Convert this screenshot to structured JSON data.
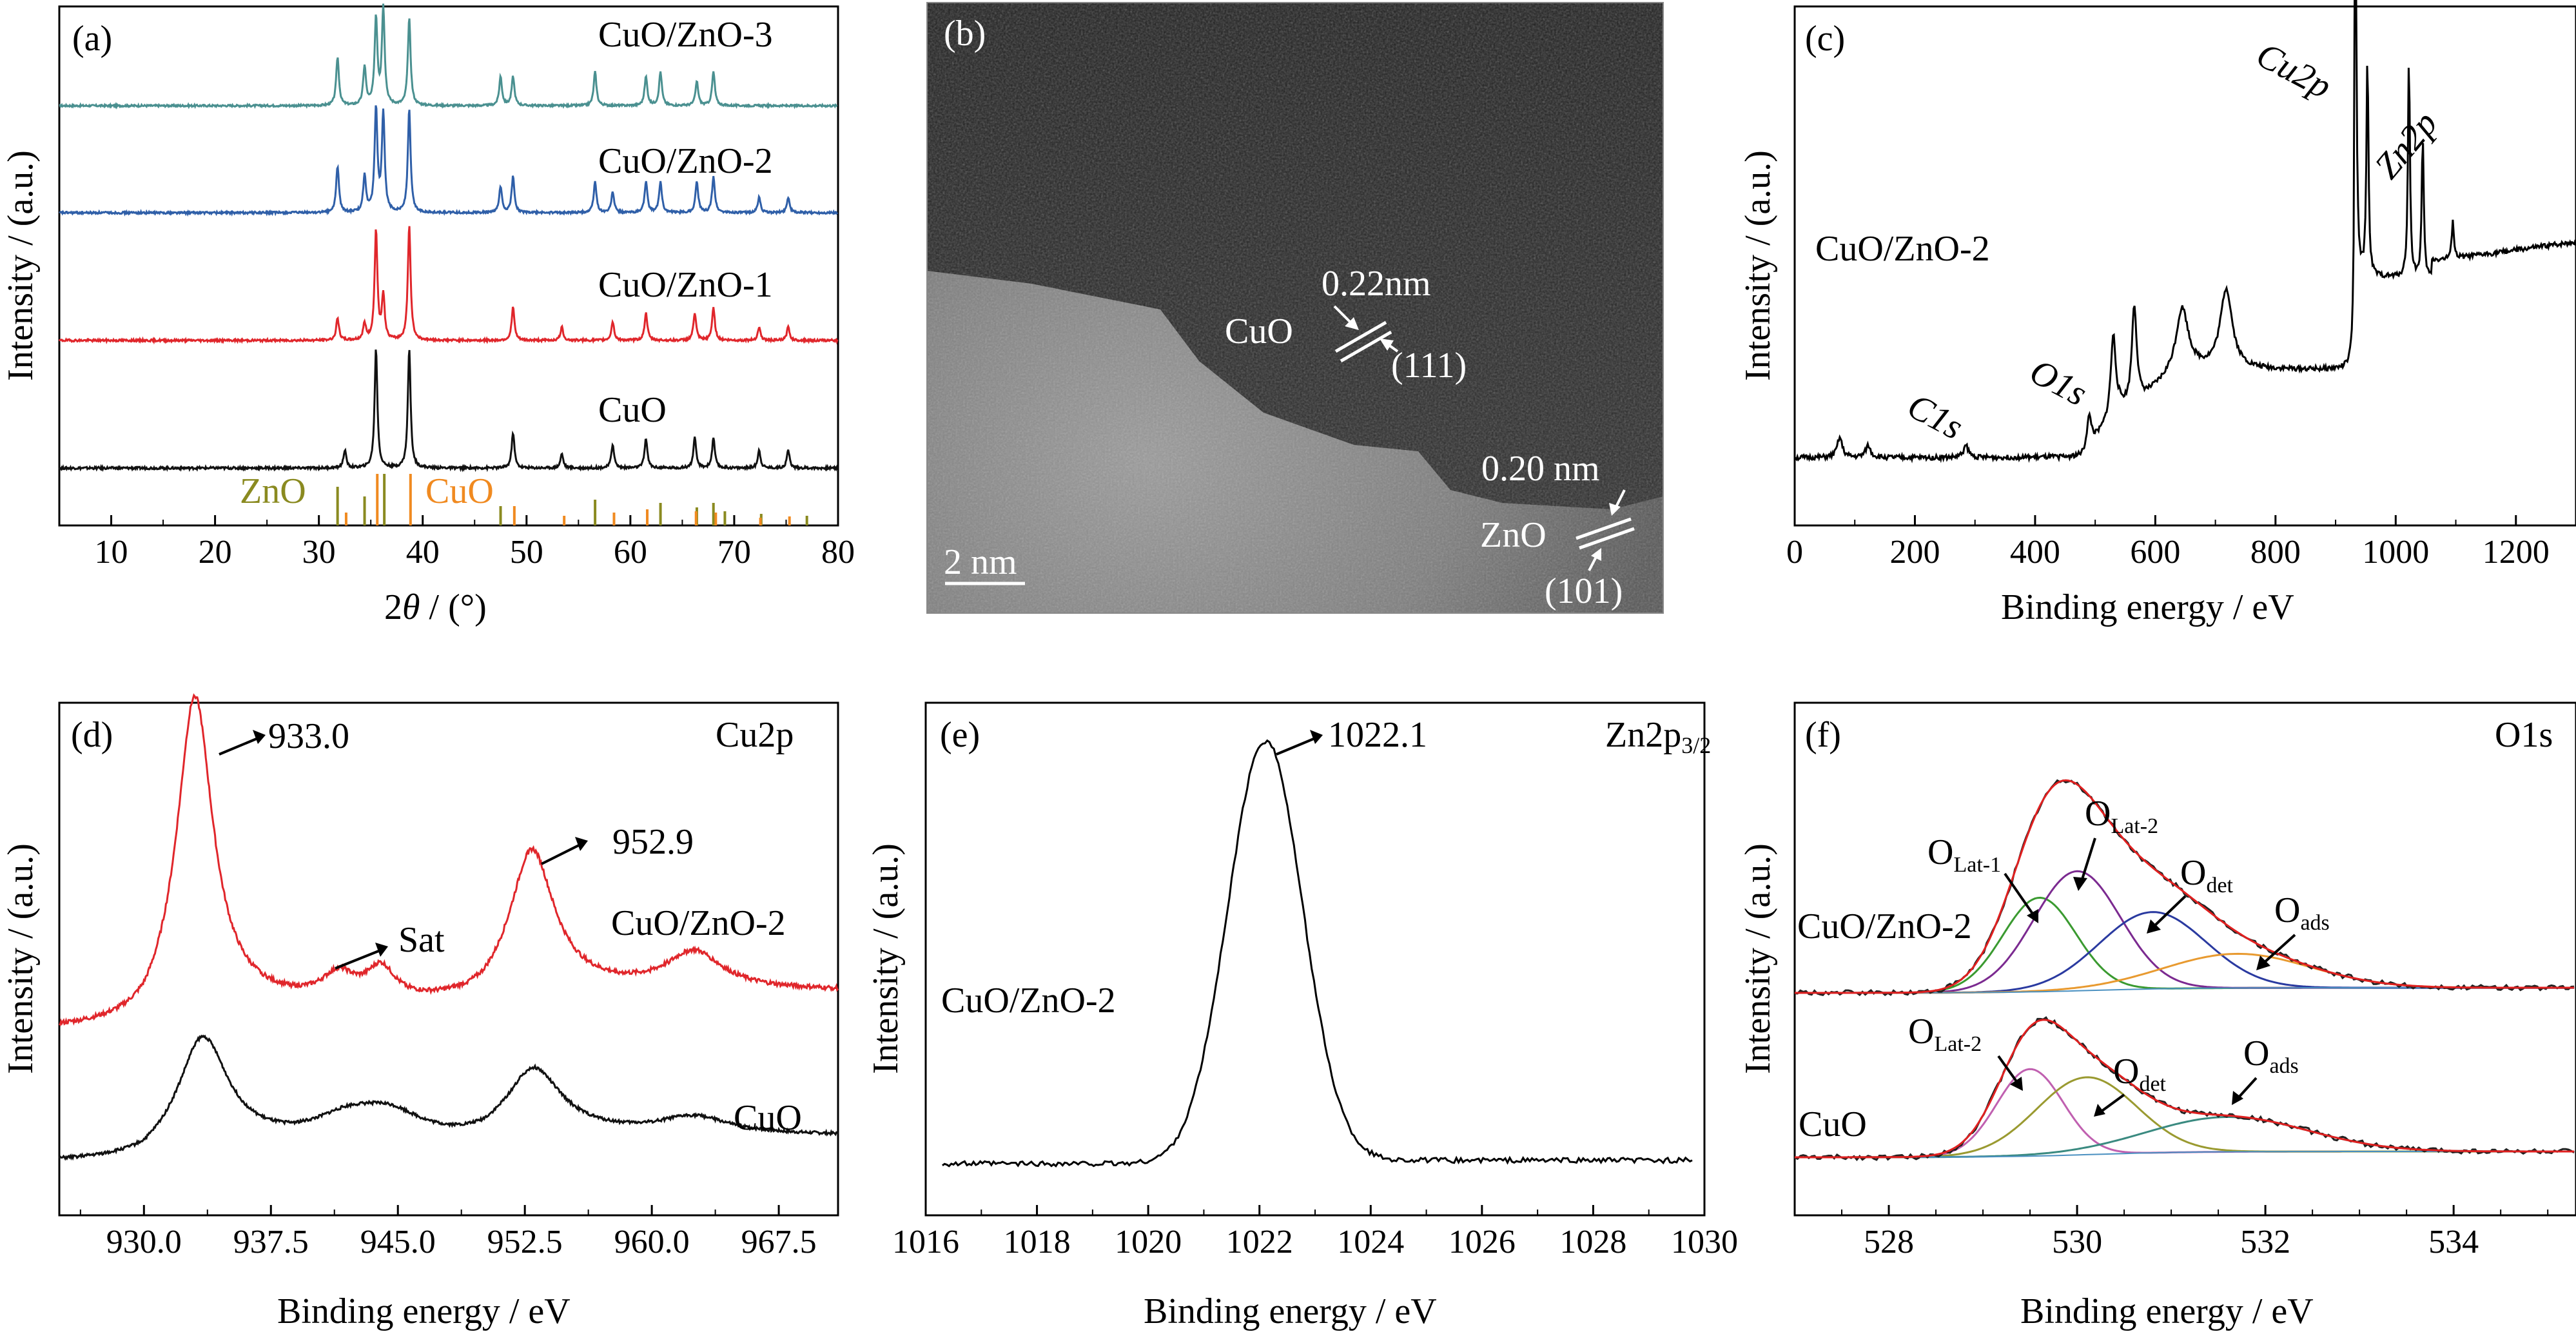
{
  "panels": {
    "a": {
      "label": "(a)",
      "xlabel_pre": "2",
      "xlabel_theta": "θ",
      "xlabel_post": " / (°)",
      "ylabel": "Intensity / (a.u.)",
      "xticks": [
        "10",
        "20",
        "30",
        "40",
        "50",
        "60",
        "70",
        "80"
      ],
      "series_names": [
        "CuO/ZnO-3",
        "CuO/ZnO-2",
        "CuO/ZnO-1",
        "CuO"
      ],
      "ref_names": [
        "ZnO",
        "CuO"
      ]
    },
    "b": {
      "label": "(b)",
      "scale": "2  nm",
      "cuo_label": "CuO",
      "cuo_d": "0.22nm",
      "cuo_plane": "(111)",
      "zno_label": "ZnO",
      "zno_d": "0.20 nm",
      "zno_plane": "(101)"
    },
    "c": {
      "label": "(c)",
      "xlabel": "Binding energy / eV",
      "ylabel": "Intensity / (a.u.)",
      "xticks": [
        "0",
        "200",
        "400",
        "600",
        "800",
        "1000",
        "1200"
      ],
      "sample": "CuO/ZnO-2",
      "peaks": [
        "C1s",
        "O1s",
        "Cu2p",
        "Zn2p"
      ]
    },
    "d": {
      "label": "(d)",
      "region": "Cu2p",
      "xlabel": "Binding energy / eV",
      "ylabel": "Intensity / (a.u.)",
      "xticks": [
        "930.0",
        "937.5",
        "945.0",
        "952.5",
        "960.0",
        "967.5"
      ],
      "annotations": [
        "933.0",
        "952.9",
        "Sat"
      ],
      "series_names": [
        "CuO/ZnO-2",
        "CuO"
      ]
    },
    "e": {
      "label": "(e)",
      "region_main": "Zn2p",
      "region_sub": "3/2",
      "xlabel": "Binding energy / eV",
      "ylabel": "Intensity / (a.u.)",
      "xticks": [
        "1016",
        "1018",
        "1020",
        "1022",
        "1024",
        "1026",
        "1028",
        "1030"
      ],
      "annotation": "1022.1",
      "sample": "CuO/ZnO-2"
    },
    "f": {
      "label": "(f)",
      "region": "O1s",
      "xlabel": "Binding energy / eV",
      "ylabel": "Intensity / (a.u.)",
      "xticks": [
        "528",
        "530",
        "532",
        "534"
      ],
      "samples": [
        "CuO/ZnO-2",
        "CuO"
      ],
      "comp_O": "O",
      "comp_lat1": "Lat-1",
      "comp_lat2": "Lat-2",
      "comp_det": "det",
      "comp_ads": "ads"
    }
  },
  "colors": {
    "cuo_zno_3": "#4a9090",
    "cuo_zno_2": "#2f5fa8",
    "cuo_zno_1": "#e0262b",
    "cuo": "#111111",
    "ref_zno": "#8a8a20",
    "ref_cuo": "#f08a20",
    "lat1": "#3a9a30",
    "lat2": "#7b2a90",
    "det": "#2a3aa0",
    "ads": "#e89a30",
    "envelope": "#e02020",
    "cuo_lat2": "#c060b0",
    "cuo_det": "#9a9a30",
    "cuo_ads": "#3a8a80"
  },
  "chart_data": [
    {
      "panel": "a",
      "type": "line",
      "xlabel": "2θ / (°)",
      "ylabel": "Intensity / (a.u.)",
      "xlim": [
        5,
        80
      ],
      "series": [
        {
          "name": "CuO/ZnO-3",
          "peaks": [
            [
              31.8,
              0.5
            ],
            [
              34.4,
              0.4
            ],
            [
              35.5,
              0.9
            ],
            [
              36.2,
              1.0
            ],
            [
              38.7,
              0.9
            ],
            [
              47.5,
              0.3
            ],
            [
              48.7,
              0.3
            ],
            [
              56.6,
              0.35
            ],
            [
              61.5,
              0.3
            ],
            [
              62.9,
              0.35
            ],
            [
              66.4,
              0.25
            ],
            [
              68.0,
              0.35
            ]
          ]
        },
        {
          "name": "CuO/ZnO-2",
          "peaks": [
            [
              31.8,
              0.45
            ],
            [
              34.4,
              0.35
            ],
            [
              35.5,
              1.0
            ],
            [
              36.2,
              0.95
            ],
            [
              38.7,
              1.0
            ],
            [
              47.5,
              0.25
            ],
            [
              48.7,
              0.35
            ],
            [
              56.6,
              0.3
            ],
            [
              58.3,
              0.2
            ],
            [
              61.5,
              0.3
            ],
            [
              62.9,
              0.3
            ],
            [
              66.4,
              0.3
            ],
            [
              68.0,
              0.35
            ],
            [
              72.4,
              0.15
            ],
            [
              75.2,
              0.15
            ]
          ]
        },
        {
          "name": "CuO/ZnO-1",
          "peaks": [
            [
              31.8,
              0.2
            ],
            [
              34.4,
              0.15
            ],
            [
              35.5,
              1.0
            ],
            [
              36.2,
              0.4
            ],
            [
              38.7,
              1.05
            ],
            [
              48.7,
              0.3
            ],
            [
              53.4,
              0.12
            ],
            [
              58.3,
              0.17
            ],
            [
              61.5,
              0.25
            ],
            [
              66.2,
              0.25
            ],
            [
              68.0,
              0.3
            ],
            [
              72.4,
              0.12
            ],
            [
              75.2,
              0.12
            ]
          ]
        },
        {
          "name": "CuO",
          "peaks": [
            [
              32.5,
              0.15
            ],
            [
              35.5,
              1.0
            ],
            [
              38.7,
              1.0
            ],
            [
              48.7,
              0.3
            ],
            [
              53.4,
              0.12
            ],
            [
              58.3,
              0.2
            ],
            [
              61.5,
              0.25
            ],
            [
              66.2,
              0.25
            ],
            [
              68.0,
              0.25
            ],
            [
              72.4,
              0.15
            ],
            [
              75.2,
              0.15
            ]
          ]
        }
      ],
      "reference_ZnO": [
        31.8,
        34.4,
        36.3,
        47.5,
        56.6,
        62.9,
        66.4,
        68.0,
        69.1,
        72.6,
        77.0
      ],
      "reference_CuO": [
        32.5,
        35.5,
        38.7,
        48.7,
        53.5,
        58.3,
        61.5,
        66.2,
        68.1,
        72.4,
        75.2
      ]
    },
    {
      "panel": "c",
      "type": "line",
      "xlabel": "Binding energy / eV",
      "ylabel": "Intensity / (a.u.)",
      "xlim": [
        0,
        1300
      ],
      "series": [
        {
          "name": "CuO/ZnO-2",
          "peaks": [
            [
              75,
              0.05
            ],
            [
              122,
              0.03
            ],
            [
              285,
              0.03
            ],
            [
              490,
              0.08
            ],
            [
              530,
              0.2
            ],
            [
              565,
              0.25
            ],
            [
              645,
              0.15
            ],
            [
              718,
              0.2
            ],
            [
              933,
              1.0
            ],
            [
              953,
              0.55
            ],
            [
              1022,
              0.55
            ],
            [
              1045,
              0.35
            ],
            [
              1095,
              0.1
            ]
          ]
        }
      ]
    },
    {
      "panel": "d",
      "type": "line",
      "xlabel": "Binding energy / eV",
      "ylabel": "Intensity / (a.u.)",
      "xlim": [
        925,
        971
      ],
      "series": [
        {
          "name": "CuO/ZnO-2",
          "peaks": [
            [
              933.0,
              1.0
            ],
            [
              941.5,
              0.08
            ],
            [
              944.0,
              0.1
            ],
            [
              952.9,
              0.45
            ],
            [
              962.5,
              0.12
            ]
          ]
        },
        {
          "name": "CuO",
          "peaks": [
            [
              933.5,
              0.5
            ],
            [
              942,
              0.1
            ],
            [
              944.5,
              0.12
            ],
            [
              953.0,
              0.3
            ],
            [
              962.5,
              0.08
            ]
          ]
        }
      ]
    },
    {
      "panel": "e",
      "type": "line",
      "xlabel": "Binding energy / eV",
      "ylabel": "Intensity / (a.u.)",
      "xlim": [
        1016,
        1030
      ],
      "series": [
        {
          "name": "CuO/ZnO-2",
          "peaks": [
            [
              1022.1,
              1.0
            ]
          ]
        }
      ]
    },
    {
      "panel": "f",
      "type": "line",
      "xlabel": "Binding energy / eV",
      "ylabel": "Intensity / (a.u.)",
      "xlim": [
        527,
        535.3
      ],
      "series": [
        {
          "name": "CuO/ZnO-2",
          "components": [
            [
              "Lat-1",
              529.6,
              0.55,
              0.55
            ],
            [
              "Lat-2",
              530.0,
              0.7,
              0.65
            ],
            [
              "det",
              530.8,
              0.45,
              0.8
            ],
            [
              "ads",
              531.7,
              0.2,
              1.1
            ]
          ]
        },
        {
          "name": "CuO",
          "components": [
            [
              "Lat-2",
              529.5,
              0.45,
              0.5
            ],
            [
              "det",
              530.1,
              0.4,
              0.75
            ],
            [
              "ads",
              531.6,
              0.18,
              1.2
            ]
          ]
        }
      ]
    }
  ]
}
